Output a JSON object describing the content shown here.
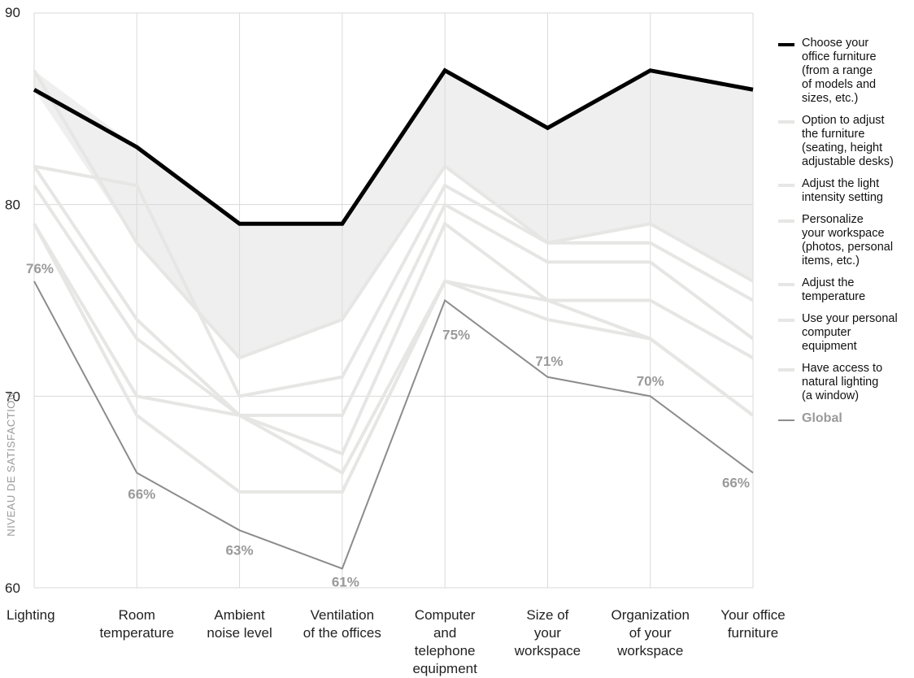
{
  "chart_data": {
    "type": "line",
    "categories": [
      "Lighting",
      "Room\ntemperature",
      "Ambient\nnoise level",
      "Ventilation\nof the offices",
      "Computer\nand\ntelephone\nequipment",
      "Size of\nyour\nworkspace",
      "Organization\nof your\nworkspace",
      "Your office\nfurniture"
    ],
    "ylim": [
      60,
      90
    ],
    "yticks": [
      60,
      70,
      80,
      90
    ],
    "ylabel": "NIVEAU DE SATISFACTION",
    "grid": true,
    "legend_position": "right",
    "series": [
      {
        "name": "Choose your\noffice furniture\n(from a range\nof models and\nsizes, etc.)",
        "values": [
          86,
          83,
          79,
          79,
          87,
          84,
          87,
          86
        ],
        "color": "#000000",
        "role": "highlight"
      },
      {
        "name": "Option to adjust\nthe furniture\n(seating, height\nadjustable desks)",
        "values": [
          87,
          78,
          72,
          74,
          82,
          78,
          79,
          76
        ],
        "color": "#e6e6e4",
        "role": "other"
      },
      {
        "name": "Adjust the light\nintensity setting",
        "values": [
          82,
          81,
          70,
          71,
          81,
          78,
          78,
          75
        ],
        "color": "#e6e6e4",
        "role": "other"
      },
      {
        "name": "Personalize\nyour workspace\n(photos, personal\nitems, etc.)",
        "values": [
          82,
          74,
          69,
          69,
          80,
          77,
          77,
          73
        ],
        "color": "#e6e6e4",
        "role": "other"
      },
      {
        "name": "Adjust the\ntemperature",
        "values": [
          81,
          73,
          69,
          67,
          79,
          75,
          75,
          72
        ],
        "color": "#e6e6e4",
        "role": "other"
      },
      {
        "name": "Use your personal\ncomputer\nequipment",
        "values": [
          79,
          70,
          69,
          66,
          76,
          74,
          73,
          69
        ],
        "color": "#e6e6e4",
        "role": "other"
      },
      {
        "name": "Have access to\nnatural lighting\n(a window)",
        "values": [
          79,
          69,
          65,
          65,
          76,
          75,
          73,
          69
        ],
        "color": "#e6e6e4",
        "role": "other"
      },
      {
        "name": "Global",
        "values": [
          76,
          66,
          63,
          61,
          75,
          71,
          70,
          66
        ],
        "color": "#8c8c8c",
        "role": "global",
        "labels": [
          "76%",
          "66%",
          "63%",
          "61%",
          "75%",
          "71%",
          "70%",
          "66%"
        ]
      }
    ],
    "band": {
      "upper_series": 0,
      "lower_series": 1,
      "color": "#efefef"
    }
  }
}
